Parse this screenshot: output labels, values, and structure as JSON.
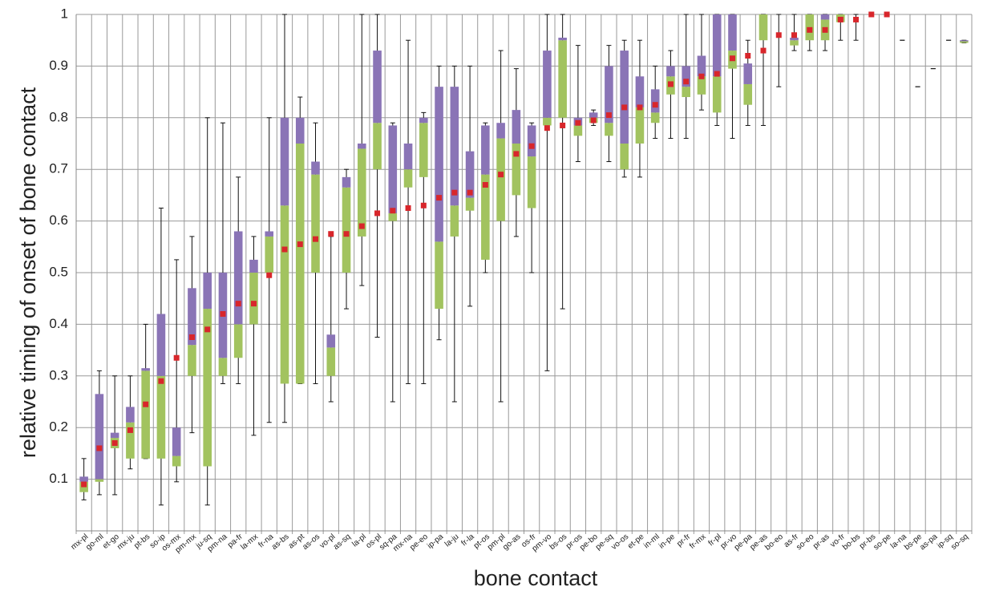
{
  "chart_data": {
    "type": "box",
    "y_label": "relative timing of onset of bone contact",
    "x_label": "bone contact",
    "categories": [
      "mx-pl",
      "go-ml",
      "et-go",
      "mx-ju",
      "pt-bs",
      "so-ip",
      "os-mx",
      "pm-mx",
      "ju-sq",
      "pm-na",
      "pa-fr",
      "la-mx",
      "fr-na",
      "as-bs",
      "as-pt",
      "as-os",
      "vo-pl",
      "as-sq",
      "la-pl",
      "os-pl",
      "sq-pa",
      "mx-na",
      "pe-eo",
      "ip-pa",
      "la-ju",
      "fr-la",
      "pt-os",
      "pm-pl",
      "go-as",
      "os-fr",
      "pm-vo",
      "bs-os",
      "pr-os",
      "pe-bo",
      "pe-sq",
      "vo-os",
      "et-pe",
      "in-ml",
      "in-pe",
      "pr-fr",
      "fr-mx",
      "fr-pl",
      "pr-vo",
      "pe-pa",
      "pe-as",
      "bo-eo",
      "as-fr",
      "so-eo",
      "pr-as",
      "vo-fr",
      "bo-bs",
      "pr-bs",
      "so-pe",
      "la-na",
      "bs-pe",
      "as-pa",
      "ip-sq",
      "so-sq"
    ],
    "min": [
      0.06,
      0.07,
      0.07,
      0.12,
      0.14,
      0.05,
      0.095,
      0.19,
      0.05,
      0.285,
      0.285,
      0.185,
      0.21,
      0.21,
      0.285,
      0.285,
      0.25,
      0.43,
      0.475,
      0.375,
      0.25,
      0.285,
      0.285,
      0.37,
      0.25,
      0.435,
      0.5,
      0.25,
      0.57,
      0.5,
      0.31,
      0.43,
      0.715,
      0.785,
      0.715,
      0.685,
      0.685,
      0.76,
      0.76,
      0.76,
      0.815,
      0.785,
      0.76,
      0.785,
      0.785,
      0.86,
      0.93,
      0.93,
      0.93,
      0.95,
      0.95,
      1,
      1,
      0.95,
      0.86,
      0.895,
      0.95,
      0.945
    ],
    "q1": [
      0.075,
      0.095,
      0.16,
      0.14,
      0.14,
      0.14,
      0.125,
      0.3,
      0.125,
      0.3,
      0.335,
      0.4,
      0.5,
      0.285,
      0.285,
      0.5,
      0.3,
      0.5,
      0.57,
      0.7,
      0.6,
      0.665,
      0.685,
      0.43,
      0.57,
      0.62,
      0.525,
      0.6,
      0.65,
      0.625,
      0.785,
      0.8,
      0.765,
      0.79,
      0.765,
      0.7,
      0.75,
      0.79,
      0.845,
      0.84,
      0.845,
      0.81,
      0.895,
      0.825,
      0.95,
      0.96,
      0.94,
      0.95,
      0.95,
      0.985,
      0.99,
      1,
      1,
      0.95,
      0.86,
      0.895,
      0.95,
      0.945
    ],
    "median": [
      0.095,
      0.1,
      0.18,
      0.21,
      0.31,
      0.3,
      0.145,
      0.36,
      0.43,
      0.335,
      0.4,
      0.5,
      0.57,
      0.63,
      0.75,
      0.69,
      0.355,
      0.665,
      0.74,
      0.79,
      0.615,
      0.7,
      0.79,
      0.56,
      0.63,
      0.645,
      0.69,
      0.76,
      0.75,
      0.725,
      0.8,
      0.95,
      0.785,
      0.8,
      0.79,
      0.75,
      0.82,
      0.81,
      0.88,
      0.86,
      0.88,
      0.88,
      0.93,
      0.865,
      1,
      0.96,
      0.95,
      1,
      0.99,
      1,
      0.99,
      1,
      1,
      0.95,
      0.86,
      0.895,
      0.95,
      0.948
    ],
    "q3": [
      0.105,
      0.265,
      0.19,
      0.24,
      0.315,
      0.42,
      0.2,
      0.47,
      0.5,
      0.5,
      0.58,
      0.525,
      0.58,
      0.8,
      0.8,
      0.715,
      0.38,
      0.685,
      0.75,
      0.93,
      0.785,
      0.75,
      0.8,
      0.86,
      0.86,
      0.735,
      0.785,
      0.79,
      0.815,
      0.785,
      0.93,
      0.955,
      0.8,
      0.81,
      0.9,
      0.93,
      0.88,
      0.855,
      0.9,
      0.9,
      0.92,
      1,
      1,
      0.905,
      1,
      0.96,
      0.955,
      1,
      1,
      1,
      0.99,
      1,
      1,
      0.95,
      0.86,
      0.895,
      0.95,
      0.95
    ],
    "max": [
      0.14,
      0.31,
      0.3,
      0.3,
      0.4,
      0.625,
      0.525,
      0.57,
      0.8,
      0.79,
      0.685,
      0.57,
      0.8,
      1,
      0.84,
      0.79,
      0.57,
      0.7,
      1,
      1,
      0.79,
      0.95,
      0.81,
      0.9,
      0.9,
      0.9,
      0.79,
      0.93,
      0.895,
      0.79,
      1,
      1,
      0.94,
      0.815,
      0.94,
      0.95,
      0.95,
      0.9,
      0.93,
      1,
      1,
      1,
      1,
      0.95,
      1,
      1,
      1,
      1,
      1,
      1,
      1,
      1,
      1,
      0.95,
      0.86,
      0.895,
      0.95,
      0.95
    ],
    "mean": [
      0.09,
      0.16,
      0.17,
      0.195,
      0.245,
      0.29,
      0.335,
      0.375,
      0.39,
      0.42,
      0.44,
      0.44,
      0.495,
      0.545,
      0.555,
      0.565,
      0.575,
      0.575,
      0.59,
      0.615,
      0.62,
      0.625,
      0.63,
      0.645,
      0.655,
      0.655,
      0.67,
      0.69,
      0.73,
      0.745,
      0.78,
      0.785,
      0.79,
      0.795,
      0.805,
      0.82,
      0.82,
      0.825,
      0.865,
      0.87,
      0.88,
      0.885,
      0.915,
      0.92,
      0.93,
      0.96,
      0.96,
      0.97,
      0.97,
      0.99,
      0.99,
      1,
      1,
      null,
      null,
      null,
      null,
      null
    ],
    "colors": {
      "lower": "#a2c35f",
      "upper": "#8a74b6",
      "mean": "#d8262b",
      "whisker": "#111111"
    },
    "ylim": [
      0,
      1
    ],
    "yticks": [
      0.1,
      0.2,
      0.3,
      0.4,
      0.5,
      0.6,
      0.7,
      0.8,
      0.9,
      1
    ],
    "grid": true
  }
}
